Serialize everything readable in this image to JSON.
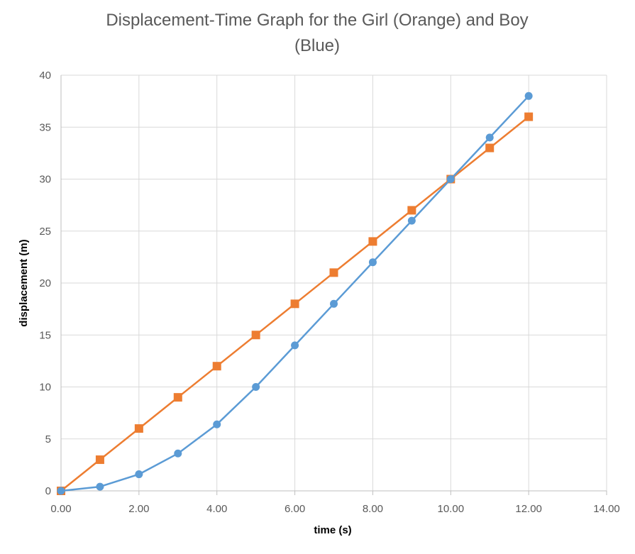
{
  "chart_data": {
    "type": "scatter",
    "title_lines": [
      "Displacement-Time Graph for the Girl (Orange) and Boy",
      "(Blue)"
    ],
    "xlabel": "time (s)",
    "ylabel": "displacement (m)",
    "xlim": [
      0,
      14
    ],
    "ylim": [
      0,
      40
    ],
    "x_ticks": [
      "0.00",
      "2.00",
      "4.00",
      "6.00",
      "8.00",
      "10.00",
      "12.00",
      "14.00"
    ],
    "y_ticks": [
      "0",
      "5",
      "10",
      "15",
      "20",
      "25",
      "30",
      "35",
      "40"
    ],
    "grid": true,
    "legend": "none",
    "series": [
      {
        "color": "#ed7d31",
        "marker": "square",
        "x": [
          0,
          1,
          2,
          3,
          4,
          5,
          6,
          7,
          8,
          9,
          10,
          11,
          12
        ],
        "y": [
          0,
          3,
          6,
          9,
          12,
          15,
          18,
          21,
          24,
          27,
          30,
          33,
          36
        ]
      },
      {
        "color": "#5b9bd5",
        "marker": "circle",
        "x": [
          0,
          1,
          2,
          3,
          4,
          5,
          6,
          7,
          8,
          9,
          10,
          11,
          12
        ],
        "y": [
          0,
          0.4,
          1.6,
          3.6,
          6.4,
          10,
          14,
          18,
          22,
          26,
          30,
          34,
          38
        ]
      }
    ]
  }
}
